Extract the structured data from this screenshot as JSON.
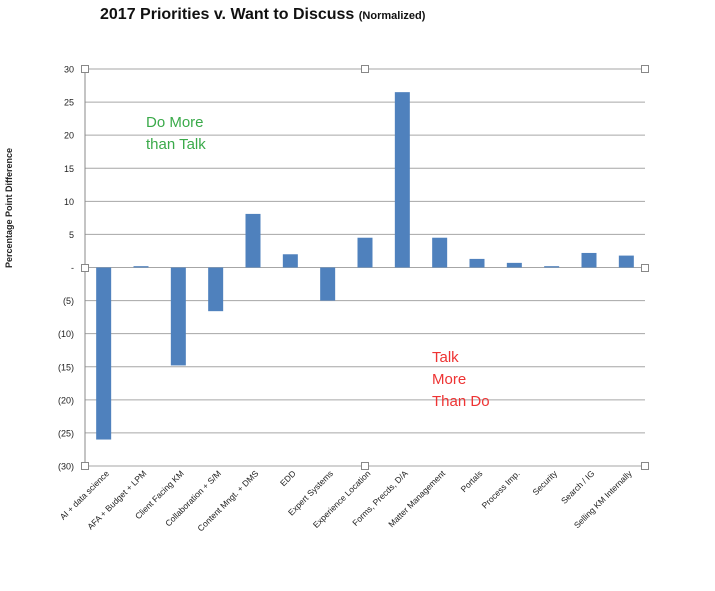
{
  "chart_title": "2017 Priorities v. Want to Discuss",
  "chart_subtitle": "(Normalized)",
  "chart_data": {
    "type": "bar",
    "title": "2017 Priorities v. Want to Discuss",
    "subtitle": "(Normalized)",
    "ylabel": "Percentage Point Difference",
    "xlabel": "",
    "ylim": [
      -30,
      30
    ],
    "grid": true,
    "y_ticks": [
      30,
      25,
      20,
      15,
      10,
      5,
      0,
      -5,
      -10,
      -15,
      -20,
      -25,
      -30
    ],
    "y_tick_labels": [
      "30",
      "25",
      "20",
      "15",
      "10",
      "5",
      "-",
      "(5)",
      "(10)",
      "(15)",
      "(20)",
      "(25)",
      "(30)"
    ],
    "categories": [
      "AI + data science",
      "AFA + Budget + LPM",
      "Client Facing KM",
      "Collaboration + S/M",
      "Content Mngt. + DMS",
      "EDD",
      "Expert Systems",
      "Experience Location",
      "Forms, Precds, D/A",
      "Matter Management",
      "Portals",
      "Process Imp.",
      "Security",
      "Search / IG",
      "Selling KM Internally"
    ],
    "values": [
      -26,
      0.2,
      -14.8,
      -6.6,
      8.1,
      2.0,
      -5.0,
      4.5,
      26.5,
      4.5,
      1.3,
      0.7,
      0.2,
      2.2,
      1.8
    ],
    "bar_color": "#4f81bd",
    "annotations": [
      {
        "text": "Do More\nthan Talk",
        "color": "#3aaa4a"
      },
      {
        "text": "Talk\nMore\nThan Do",
        "color": "#ee3333"
      }
    ]
  }
}
